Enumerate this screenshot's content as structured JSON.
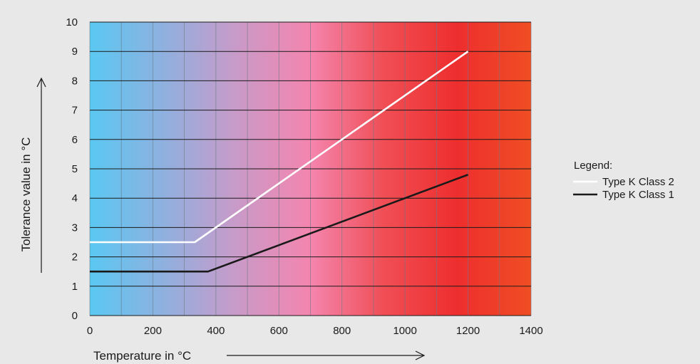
{
  "chart_data": {
    "type": "line",
    "xlabel": "Temperature in °C",
    "ylabel": "Tolerance value in °C",
    "xlim": [
      0,
      1400
    ],
    "ylim": [
      0,
      10
    ],
    "x_ticks": [
      0,
      200,
      400,
      600,
      800,
      1000,
      1200,
      1400
    ],
    "y_ticks": [
      0,
      1,
      2,
      3,
      4,
      5,
      6,
      7,
      8,
      9,
      10
    ],
    "grid": true,
    "legend_position": "right",
    "legend_title": "Legend:",
    "background_gradient": [
      "#5ac8f2",
      "#8fb0df",
      "#c99ac8",
      "#f485ae",
      "#f04e55",
      "#ee2e2e",
      "#ef4e24"
    ],
    "series": [
      {
        "name": "Type K Class 2",
        "color": "#ffffff",
        "points": [
          [
            0,
            2.5
          ],
          [
            333,
            2.5
          ],
          [
            1200,
            9.0
          ]
        ]
      },
      {
        "name": "Type K Class 1",
        "color": "#1a1a1a",
        "points": [
          [
            0,
            1.5
          ],
          [
            375,
            1.5
          ],
          [
            1200,
            4.8
          ]
        ]
      }
    ]
  }
}
